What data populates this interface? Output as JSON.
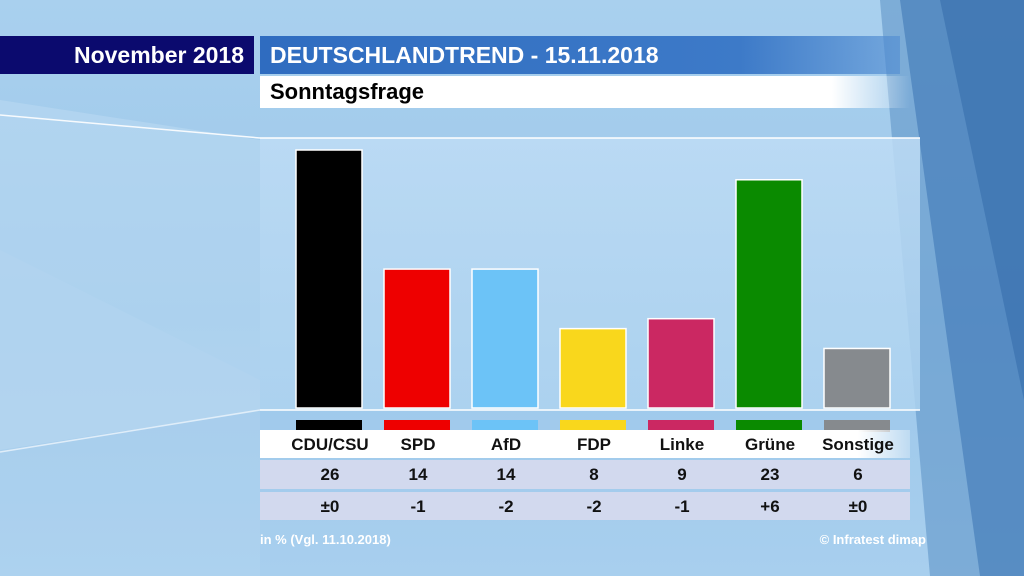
{
  "header": {
    "date_label": "November 2018",
    "title": "DEUTSCHLANDTREND - 15.11.2018",
    "subtitle": "Sonntagsfrage"
  },
  "chart_data": {
    "type": "bar",
    "title": "Sonntagsfrage",
    "categories": [
      "CDU/CSU",
      "SPD",
      "AfD",
      "FDP",
      "Linke",
      "Grüne",
      "Sonstige"
    ],
    "values": [
      26,
      14,
      14,
      8,
      9,
      23,
      6
    ],
    "colors": [
      "#000000",
      "#ee0000",
      "#6cc3f7",
      "#f9d71c",
      "#cb2862",
      "#0a8a00",
      "#868a8e"
    ],
    "value_labels": [
      "26",
      "14",
      "14",
      "8",
      "9",
      "23",
      "6"
    ],
    "changes": [
      "±0",
      "-1",
      "-2",
      "-2",
      "-1",
      "+6",
      "±0"
    ],
    "unit_note": "in % (Vgl. 11.10.2018)",
    "ylim": [
      0,
      27
    ]
  },
  "footer": {
    "note": "in % (Vgl. 11.10.2018)",
    "source": "© Infratest dimap"
  }
}
